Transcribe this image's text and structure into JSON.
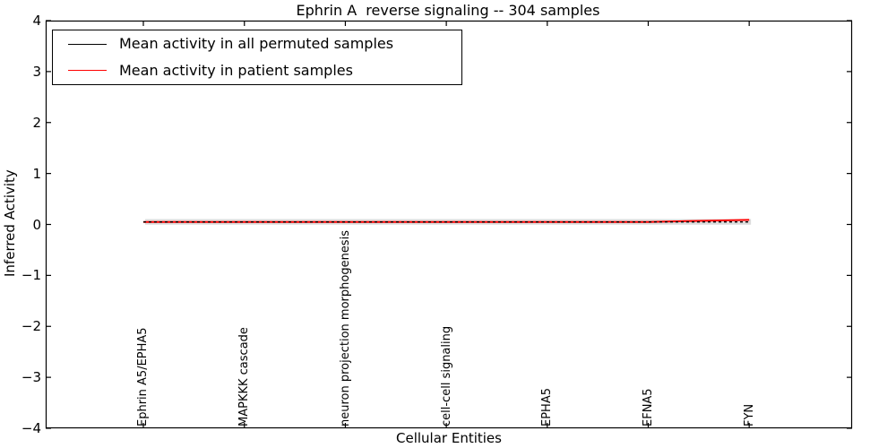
{
  "title": "Ephrin A  reverse signaling -- 304 samples",
  "axes": {
    "xlabel": "Cellular Entities",
    "ylabel": "Inferred Activity",
    "yticks": [
      "4",
      "3",
      "2",
      "1",
      "0",
      "−1",
      "−2",
      "−3",
      "−4"
    ]
  },
  "legend": {
    "items": [
      {
        "label": "Mean activity in all permuted samples",
        "color": "#000000"
      },
      {
        "label": "Mean activity in patient samples",
        "color": "#ff0000"
      }
    ]
  },
  "chart_data": {
    "type": "line",
    "title": "Ephrin A  reverse signaling -- 304 samples",
    "xlabel": "Cellular Entities",
    "ylabel": "Inferred Activity",
    "ylim": [
      -4,
      4
    ],
    "grid": false,
    "legend_position": "upper left",
    "categories": [
      "Ephrin A5/EPHA5",
      "MAPKKK cascade",
      "neuron projection morphogenesis",
      "cell-cell signaling",
      "EPHA5",
      "EFNA5",
      "FYN"
    ],
    "series": [
      {
        "name": "Mean activity in all permuted samples",
        "color": "#000000",
        "style": "dashed",
        "values": [
          0.05,
          0.05,
          0.05,
          0.05,
          0.05,
          0.05,
          0.05
        ]
      },
      {
        "name": "Mean activity in patient samples",
        "color": "#ff0000",
        "style": "solid",
        "values": [
          0.05,
          0.05,
          0.05,
          0.05,
          0.05,
          0.05,
          0.09
        ]
      }
    ],
    "band": {
      "description": "shaded range around permuted mean",
      "color": "#dcdcdc",
      "center": 0.05,
      "halfwidth": 0.055
    }
  }
}
